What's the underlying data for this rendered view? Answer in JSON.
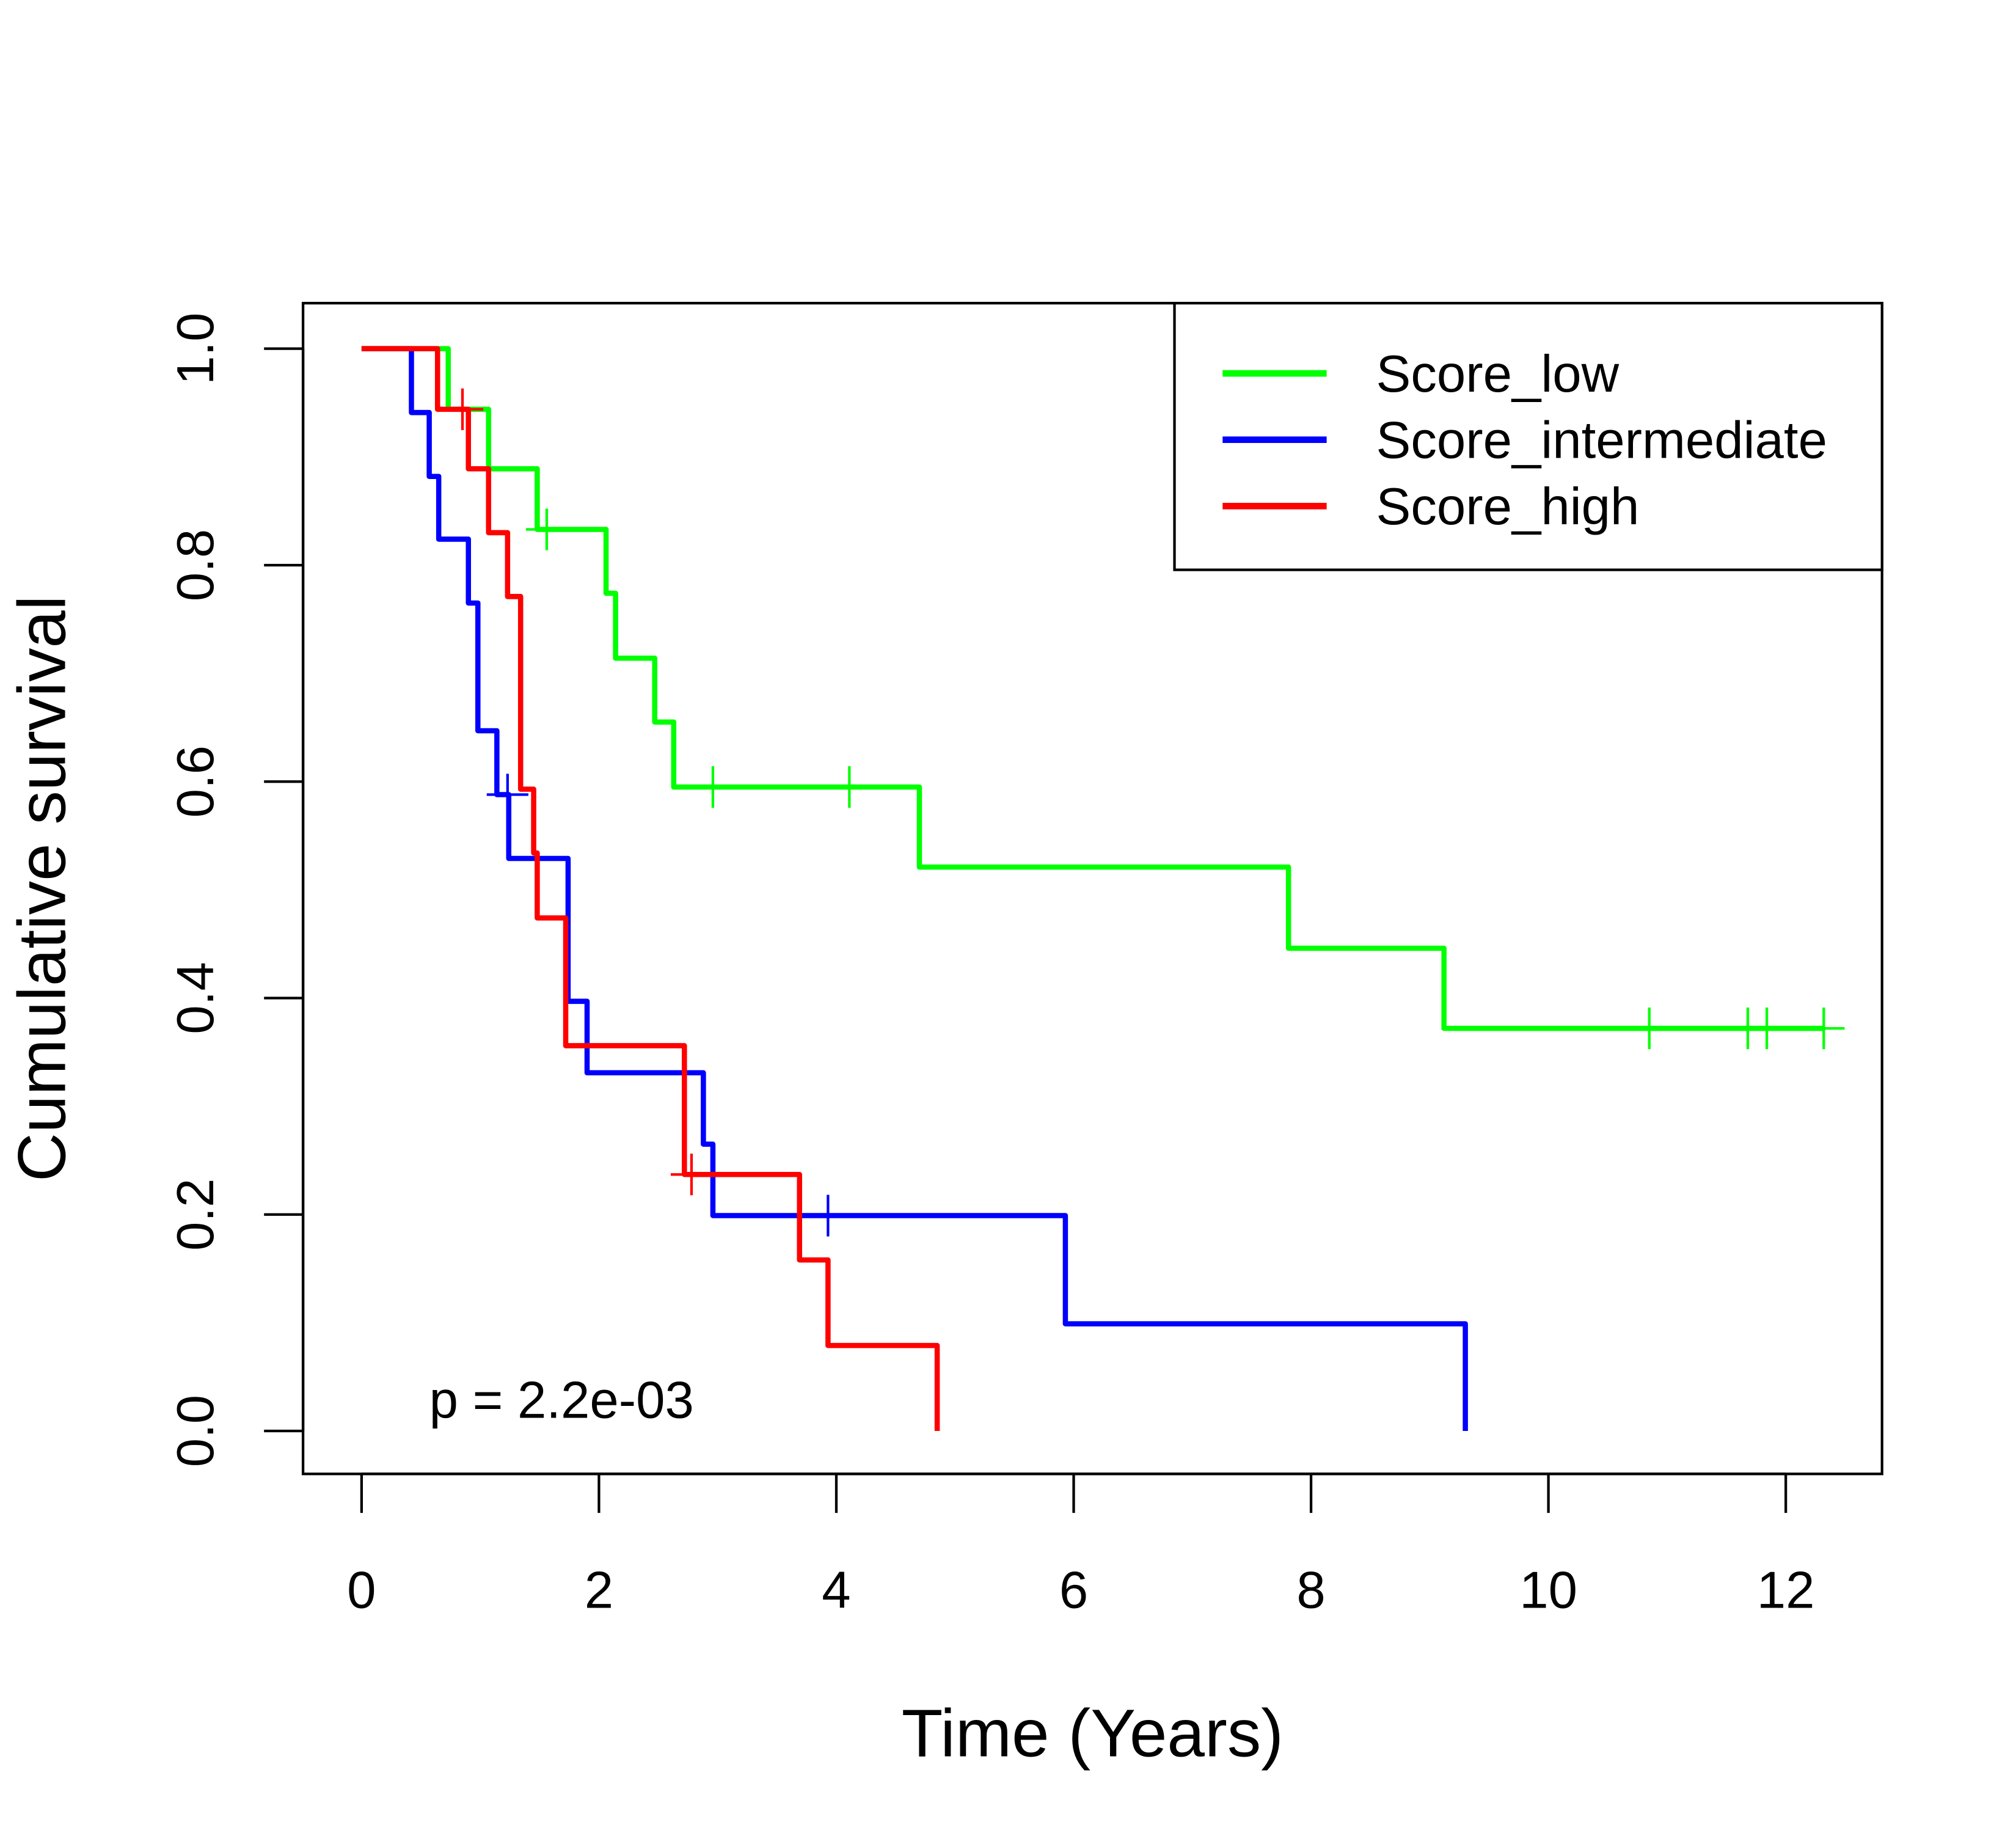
{
  "chart_data": {
    "type": "line",
    "subtype": "kaplan-meier step",
    "title": "",
    "xlabel": "Time (Years)",
    "ylabel": "Cumulative survival",
    "xlim": [
      0,
      12.5
    ],
    "ylim": [
      0,
      1.0
    ],
    "xticks": [
      "0",
      "2",
      "4",
      "6",
      "8",
      "10",
      "12"
    ],
    "yticks": [
      "0.0",
      "0.2",
      "0.4",
      "0.6",
      "0.8",
      "1.0"
    ],
    "grid": false,
    "legend_position": "top-right",
    "annotation": "p = 2.2e-03",
    "series": [
      {
        "name": "Score_low",
        "color": "#00ff00",
        "steps": [
          [
            0,
            1.0
          ],
          [
            0.73,
            0.944
          ],
          [
            1.07,
            0.889
          ],
          [
            1.48,
            0.833
          ],
          [
            2.06,
            0.774
          ],
          [
            2.14,
            0.714
          ],
          [
            2.47,
            0.655
          ],
          [
            2.63,
            0.595
          ],
          [
            4.7,
            0.521
          ],
          [
            7.81,
            0.446
          ],
          [
            9.12,
            0.372
          ]
        ],
        "end": 12.32,
        "censored": [
          1.56,
          2.96,
          4.11,
          10.85,
          11.68,
          11.84,
          12.32
        ]
      },
      {
        "name": "Score_intermediate",
        "color": "#0000ff",
        "steps": [
          [
            0,
            1.0
          ],
          [
            0.42,
            0.941
          ],
          [
            0.57,
            0.882
          ],
          [
            0.65,
            0.824
          ],
          [
            0.9,
            0.765
          ],
          [
            0.98,
            0.647
          ],
          [
            1.14,
            0.588
          ],
          [
            1.24,
            0.529
          ],
          [
            1.74,
            0.397
          ],
          [
            1.9,
            0.331
          ],
          [
            2.88,
            0.265
          ],
          [
            2.96,
            0.199
          ],
          [
            5.93,
            0.099
          ],
          [
            9.3,
            0.0
          ]
        ],
        "end": 9.3,
        "censored": [
          1.23,
          3.93
        ]
      },
      {
        "name": "Score_high",
        "color": "#ff0000",
        "steps": [
          [
            0,
            1.0
          ],
          [
            0.64,
            0.944
          ],
          [
            0.9,
            0.889
          ],
          [
            1.07,
            0.83
          ],
          [
            1.23,
            0.771
          ],
          [
            1.34,
            0.593
          ],
          [
            1.45,
            0.534
          ],
          [
            1.48,
            0.474
          ],
          [
            1.72,
            0.356
          ],
          [
            2.72,
            0.237
          ],
          [
            3.69,
            0.158
          ],
          [
            3.93,
            0.079
          ],
          [
            4.85,
            0.0
          ]
        ],
        "end": 4.85,
        "censored": [
          0.85,
          2.78
        ]
      }
    ]
  }
}
